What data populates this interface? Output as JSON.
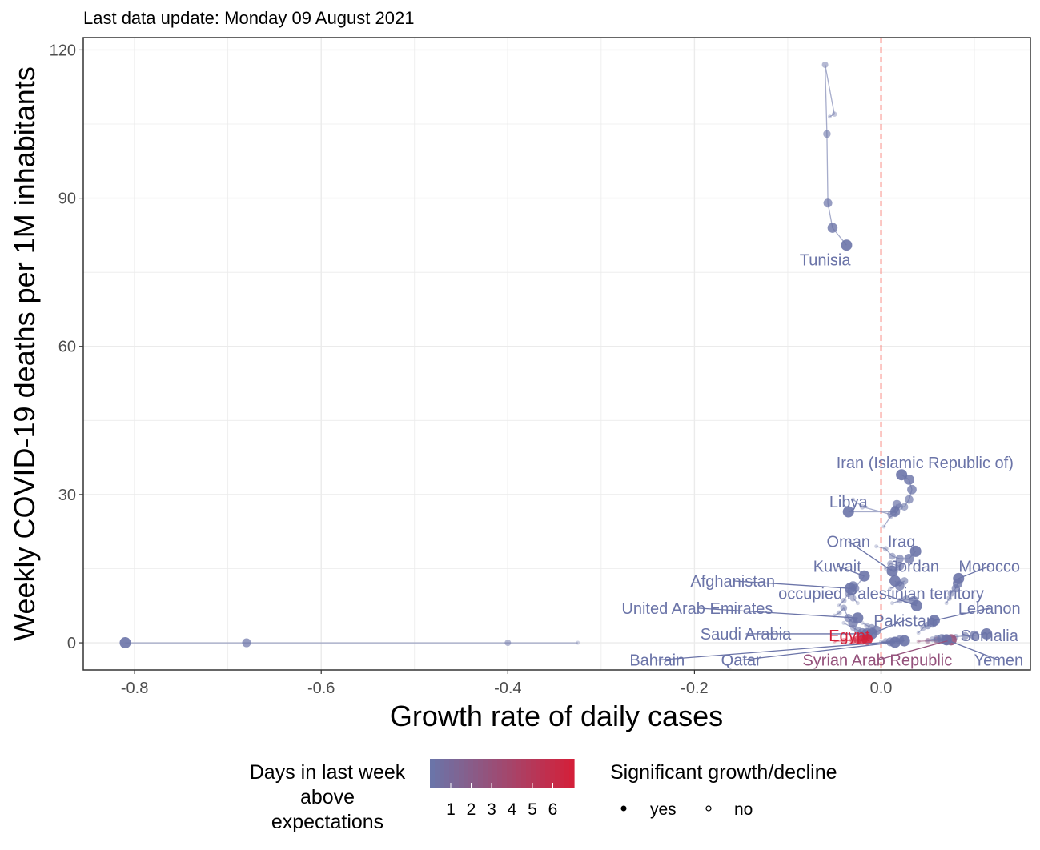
{
  "subtitle": "Last data update: Monday 09 August 2021",
  "colors": {
    "low": "#6b74a8",
    "high": "#d3203a",
    "zero_line": "#f8766d",
    "grid": "#ebebeb"
  },
  "chart_data": {
    "type": "scatter",
    "xlabel": "Growth rate of daily cases",
    "ylabel": "Weekly COVID-19 deaths per 1M inhabitants",
    "xlim": [
      -0.855,
      0.16
    ],
    "ylim": [
      -5.5,
      122.5
    ],
    "x_ticks": [
      -0.8,
      -0.6,
      -0.4,
      -0.2,
      0.0
    ],
    "x_tick_labels": [
      "-0.8",
      "-0.6",
      "-0.4",
      "-0.2",
      "0.0"
    ],
    "y_ticks": [
      0,
      30,
      60,
      90,
      120
    ],
    "y_tick_labels": [
      "0",
      "30",
      "60",
      "90",
      "120"
    ],
    "grid": true,
    "reference_line": {
      "x": 0,
      "style": "dashed"
    },
    "legend_position": "bottom",
    "color_legend": {
      "title": [
        "Days in last week",
        "above",
        "expectations"
      ],
      "labels": [
        "1",
        "2",
        "3",
        "4",
        "5",
        "6"
      ]
    },
    "size_legend": {
      "title": "Significant growth/decline",
      "labels": [
        "yes",
        "no"
      ]
    },
    "series": [
      {
        "name": "Tunisia",
        "days": 1,
        "label_pos": [
          -0.06,
          77.5
        ],
        "points": [
          [
            -0.055,
            106.5
          ],
          [
            -0.05,
            107
          ],
          [
            -0.06,
            117
          ],
          [
            -0.058,
            103
          ],
          [
            -0.057,
            89
          ],
          [
            -0.052,
            84
          ],
          [
            -0.037,
            80.5
          ]
        ]
      },
      {
        "name": "Iran (Islamic Republic of)",
        "days": 1,
        "label_pos": [
          0.047,
          36.5
        ],
        "points": [
          [
            0.003,
            23.5
          ],
          [
            0.01,
            25.5
          ],
          [
            0.015,
            26
          ],
          [
            0.02,
            27.5
          ],
          [
            0.025,
            27.5
          ],
          [
            0.03,
            29
          ],
          [
            0.033,
            31
          ],
          [
            0.03,
            33
          ],
          [
            0.022,
            34
          ]
        ]
      },
      {
        "name": "Libya",
        "days": 1,
        "label_pos": [
          -0.035,
          28.5
        ],
        "points": [
          [
            -0.03,
            29
          ],
          [
            -0.02,
            27.5
          ],
          [
            0.01,
            26
          ],
          [
            0.015,
            27
          ],
          [
            0.017,
            28
          ],
          [
            0.015,
            26.5
          ],
          [
            -0.035,
            26.5
          ]
        ]
      },
      {
        "name": "Iraq",
        "days": 1,
        "label_pos": [
          0.022,
          20.5
        ],
        "points": [
          [
            -0.005,
            19.5
          ],
          [
            0.005,
            19
          ],
          [
            0.012,
            17.5
          ],
          [
            0.02,
            17
          ],
          [
            0.03,
            17
          ],
          [
            0.037,
            18.5
          ]
        ]
      },
      {
        "name": "Oman",
        "days": 1,
        "label_pos": [
          -0.035,
          20.5
        ],
        "points": [
          [
            0.005,
            15
          ],
          [
            0.01,
            16
          ],
          [
            0.02,
            15.5
          ],
          [
            0.012,
            14.5
          ]
        ]
      },
      {
        "name": "Jordan",
        "days": 1,
        "label_pos": [
          0.036,
          15.5
        ],
        "points": [
          [
            0.01,
            11
          ],
          [
            0.02,
            12
          ],
          [
            0.025,
            12.5
          ],
          [
            0.02,
            11.5
          ],
          [
            0.015,
            12.5
          ]
        ]
      },
      {
        "name": "Morocco",
        "days": 1,
        "label_pos": [
          0.116,
          15.5
        ],
        "points": [
          [
            0.07,
            8
          ],
          [
            0.073,
            9
          ],
          [
            0.075,
            10
          ],
          [
            0.08,
            11
          ],
          [
            0.082,
            12
          ],
          [
            0.083,
            13
          ]
        ]
      },
      {
        "name": "Kuwait",
        "days": 1,
        "label_pos": [
          -0.047,
          15.5
        ],
        "points": [
          [
            -0.025,
            8
          ],
          [
            -0.03,
            9
          ],
          [
            -0.028,
            11
          ],
          [
            -0.018,
            13.5
          ]
        ]
      },
      {
        "name": "Afghanistan",
        "days": 1,
        "label_pos": [
          -0.159,
          12.5
        ],
        "points": [
          [
            -0.045,
            7.5
          ],
          [
            -0.04,
            8.5
          ],
          [
            -0.035,
            10
          ],
          [
            -0.03,
            11.5
          ],
          [
            -0.033,
            11
          ]
        ]
      },
      {
        "name": "occupied Palestinian territory",
        "days": 1,
        "label_pos": [
          0.0,
          10
        ],
        "points": [
          [
            0.012,
            8
          ],
          [
            0.02,
            8.5
          ],
          [
            0.027,
            8.8
          ],
          [
            0.035,
            8.5
          ],
          [
            0.038,
            7.5
          ]
        ]
      },
      {
        "name": "United Arab Emirates",
        "days": 1,
        "label_pos": [
          -0.197,
          7
        ],
        "points": [
          [
            -0.05,
            5.5
          ],
          [
            -0.045,
            6
          ],
          [
            -0.04,
            7
          ],
          [
            -0.035,
            5
          ],
          [
            -0.03,
            4
          ],
          [
            -0.025,
            5
          ]
        ]
      },
      {
        "name": "Lebanon",
        "days": 1,
        "label_pos": [
          0.116,
          7
        ],
        "points": [
          [
            0.04,
            2
          ],
          [
            0.045,
            3
          ],
          [
            0.05,
            3.5
          ],
          [
            0.055,
            4
          ],
          [
            0.057,
            4.5
          ]
        ]
      },
      {
        "name": "Pakistan",
        "days": 1,
        "label_pos": [
          0.025,
          4.5
        ],
        "points": [
          [
            -0.02,
            4
          ],
          [
            -0.015,
            3.5
          ],
          [
            -0.01,
            3
          ],
          [
            -0.005,
            2.5
          ],
          [
            -0.01,
            1.8
          ]
        ]
      },
      {
        "name": "Saudi Arabia",
        "days": 1,
        "label_pos": [
          -0.145,
          1.8
        ],
        "points": [
          [
            -0.04,
            4
          ],
          [
            -0.03,
            3
          ],
          [
            -0.025,
            2.5
          ],
          [
            -0.02,
            2
          ],
          [
            -0.015,
            1.8
          ]
        ]
      },
      {
        "name": "Somalia",
        "days": 1,
        "label_pos": [
          0.116,
          1.5
        ],
        "points": [
          [
            0.07,
            1
          ],
          [
            0.08,
            1.2
          ],
          [
            0.09,
            1.4
          ],
          [
            0.1,
            1.5
          ],
          [
            0.113,
            1.8
          ]
        ]
      },
      {
        "name": "Egypt",
        "days": 6,
        "label_pos": [
          -0.034,
          1.5
        ],
        "points": [
          [
            -0.05,
            0.3
          ],
          [
            -0.04,
            0.4
          ],
          [
            -0.03,
            0.5
          ],
          [
            -0.025,
            0.6
          ],
          [
            -0.02,
            0.6
          ],
          [
            -0.015,
            0.7
          ]
        ]
      },
      {
        "name": "Bahrain",
        "days": 1,
        "label_pos": [
          -0.24,
          -3.5
        ],
        "points": [
          [
            0.01,
            0.3
          ],
          [
            0.015,
            0.5
          ],
          [
            0.02,
            0.6
          ],
          [
            0.025,
            0.4
          ]
        ]
      },
      {
        "name": "Qatar",
        "days": 1,
        "label_pos": [
          -0.15,
          -3.5
        ],
        "points": [
          [
            0.0,
            0.2
          ],
          [
            0.005,
            0.3
          ],
          [
            0.01,
            0.2
          ],
          [
            0.015,
            0.1
          ]
        ]
      },
      {
        "name": "Syrian Arab Republic",
        "days": 3,
        "label_pos": [
          -0.004,
          -3.5
        ],
        "points": [
          [
            0.04,
            0.3
          ],
          [
            0.05,
            0.4
          ],
          [
            0.06,
            0.5
          ],
          [
            0.07,
            0.5
          ],
          [
            0.075,
            0.6
          ]
        ]
      },
      {
        "name": "Yemen",
        "days": 1,
        "label_pos": [
          0.126,
          -3.5
        ],
        "points": [
          [
            0.05,
            0.5
          ],
          [
            0.055,
            0.7
          ],
          [
            0.06,
            0.8
          ],
          [
            0.065,
            0.8
          ],
          [
            0.07,
            0.6
          ]
        ]
      },
      {
        "name": "",
        "days": 1,
        "label_pos": null,
        "points": [
          [
            -0.325,
            0.0
          ],
          [
            -0.4,
            0.0
          ],
          [
            -0.68,
            0.0
          ],
          [
            -0.81,
            0.0
          ]
        ]
      }
    ]
  }
}
